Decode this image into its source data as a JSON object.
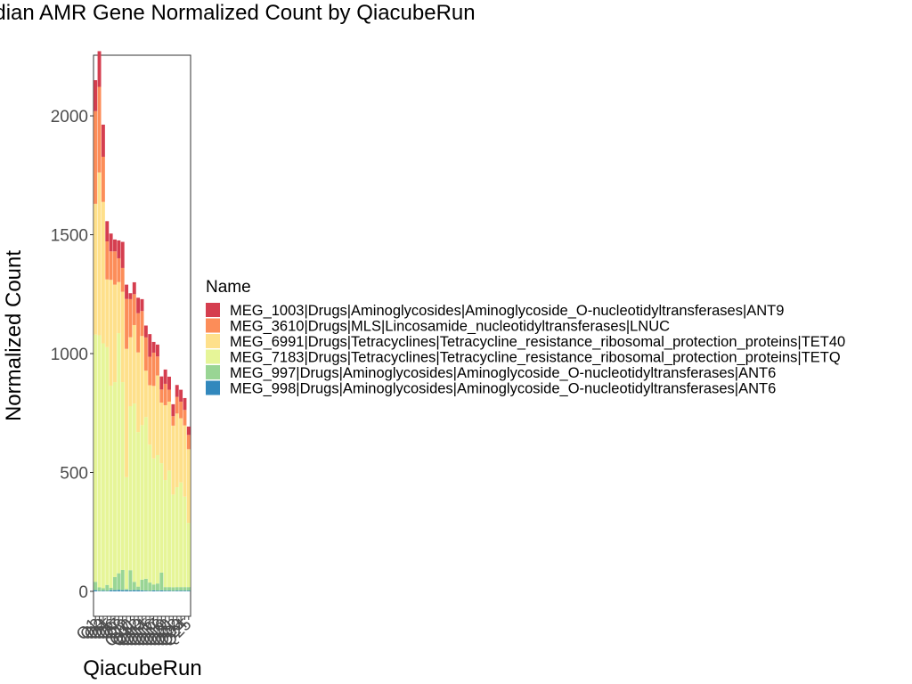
{
  "chart_data": {
    "type": "bar",
    "stacked": true,
    "title": "Median AMR Gene Normalized Count by QiacubeRun",
    "xlabel": "QiacubeRun",
    "ylabel": "Normalized Count",
    "ylim": [
      -105,
      2255
    ],
    "yticks": [
      0,
      500,
      1000,
      1500,
      2000
    ],
    "grid": false,
    "panel_border": true,
    "legend_position": "right",
    "legend_title": "Name",
    "categories": [
      "Q1",
      "Q2",
      "Q3",
      "Q4",
      "Q5",
      "Q6",
      "Q7",
      "Q8",
      "Q9",
      "Q10",
      "Q11",
      "Q12",
      "Q13",
      "Q14",
      "Q15",
      "Q16",
      "Q17",
      "Q18",
      "Q19",
      "Q20",
      "Q21",
      "Q22",
      "Q23",
      "Q24",
      "Q25"
    ],
    "series": [
      {
        "name": "MEG_998|Drugs|Aminoglycosides|Aminoglycoside_O-nucleotidyltransferases|ANT6",
        "color": "#3288BD",
        "values": [
          5,
          2,
          3,
          2,
          5,
          5,
          6,
          5,
          5,
          4,
          5,
          5,
          4,
          3,
          2,
          4,
          3,
          4,
          3,
          3,
          2,
          3,
          3,
          3,
          3
        ]
      },
      {
        "name": "MEG_997|Drugs|Aminoglycosides|Aminoglycoside_O-nucleotidyltransferases|ANT6",
        "color": "#99D594",
        "values": [
          35,
          15,
          10,
          25,
          10,
          55,
          70,
          85,
          5,
          85,
          35,
          15,
          45,
          50,
          35,
          25,
          30,
          75,
          15,
          15,
          15,
          15,
          15,
          15,
          15
        ]
      },
      {
        "name": "MEG_7183|Drugs|Tetracyclines|Tetracycline_resistance_ribosomal_protection_proteins|TETQ",
        "color": "#E6F598",
        "values": [
          1040,
          1060,
          1030,
          1000,
          850,
          820,
          1010,
          790,
          470,
          690,
          750,
          650,
          650,
          680,
          580,
          530,
          540,
          460,
          450,
          490,
          390,
          420,
          440,
          380,
          270
        ]
      },
      {
        "name": "MEG_6991|Drugs|Tetracyclines|Tetracycline_resistance_ribosomal_protection_proteins|TET40",
        "color": "#FEE08B",
        "values": [
          550,
          685,
          595,
          285,
          445,
          410,
          215,
          380,
          540,
          290,
          330,
          335,
          375,
          195,
          250,
          305,
          335,
          255,
          315,
          290,
          290,
          310,
          270,
          300,
          310
        ]
      },
      {
        "name": "MEG_3610|Drugs|MLS|Lincosamide_nucleotidyltransferases|LNUC",
        "color": "#FC8D59",
        "values": [
          390,
          360,
          190,
          160,
          120,
          140,
          100,
          100,
          210,
          160,
          130,
          165,
          105,
          140,
          120,
          140,
          80,
          55,
          90,
          50,
          40,
          70,
          70,
          65,
          60
        ]
      },
      {
        "name": "MEG_1003|Drugs|Aminoglycosides|Aminoglycoside_O-nucleotidyltransferases|ANT9",
        "color": "#D53E4F",
        "values": [
          130,
          150,
          135,
          85,
          75,
          50,
          75,
          110,
          60,
          25,
          50,
          65,
          50,
          50,
          95,
          45,
          50,
          55,
          60,
          55,
          50,
          50,
          50,
          50,
          35
        ]
      }
    ]
  }
}
